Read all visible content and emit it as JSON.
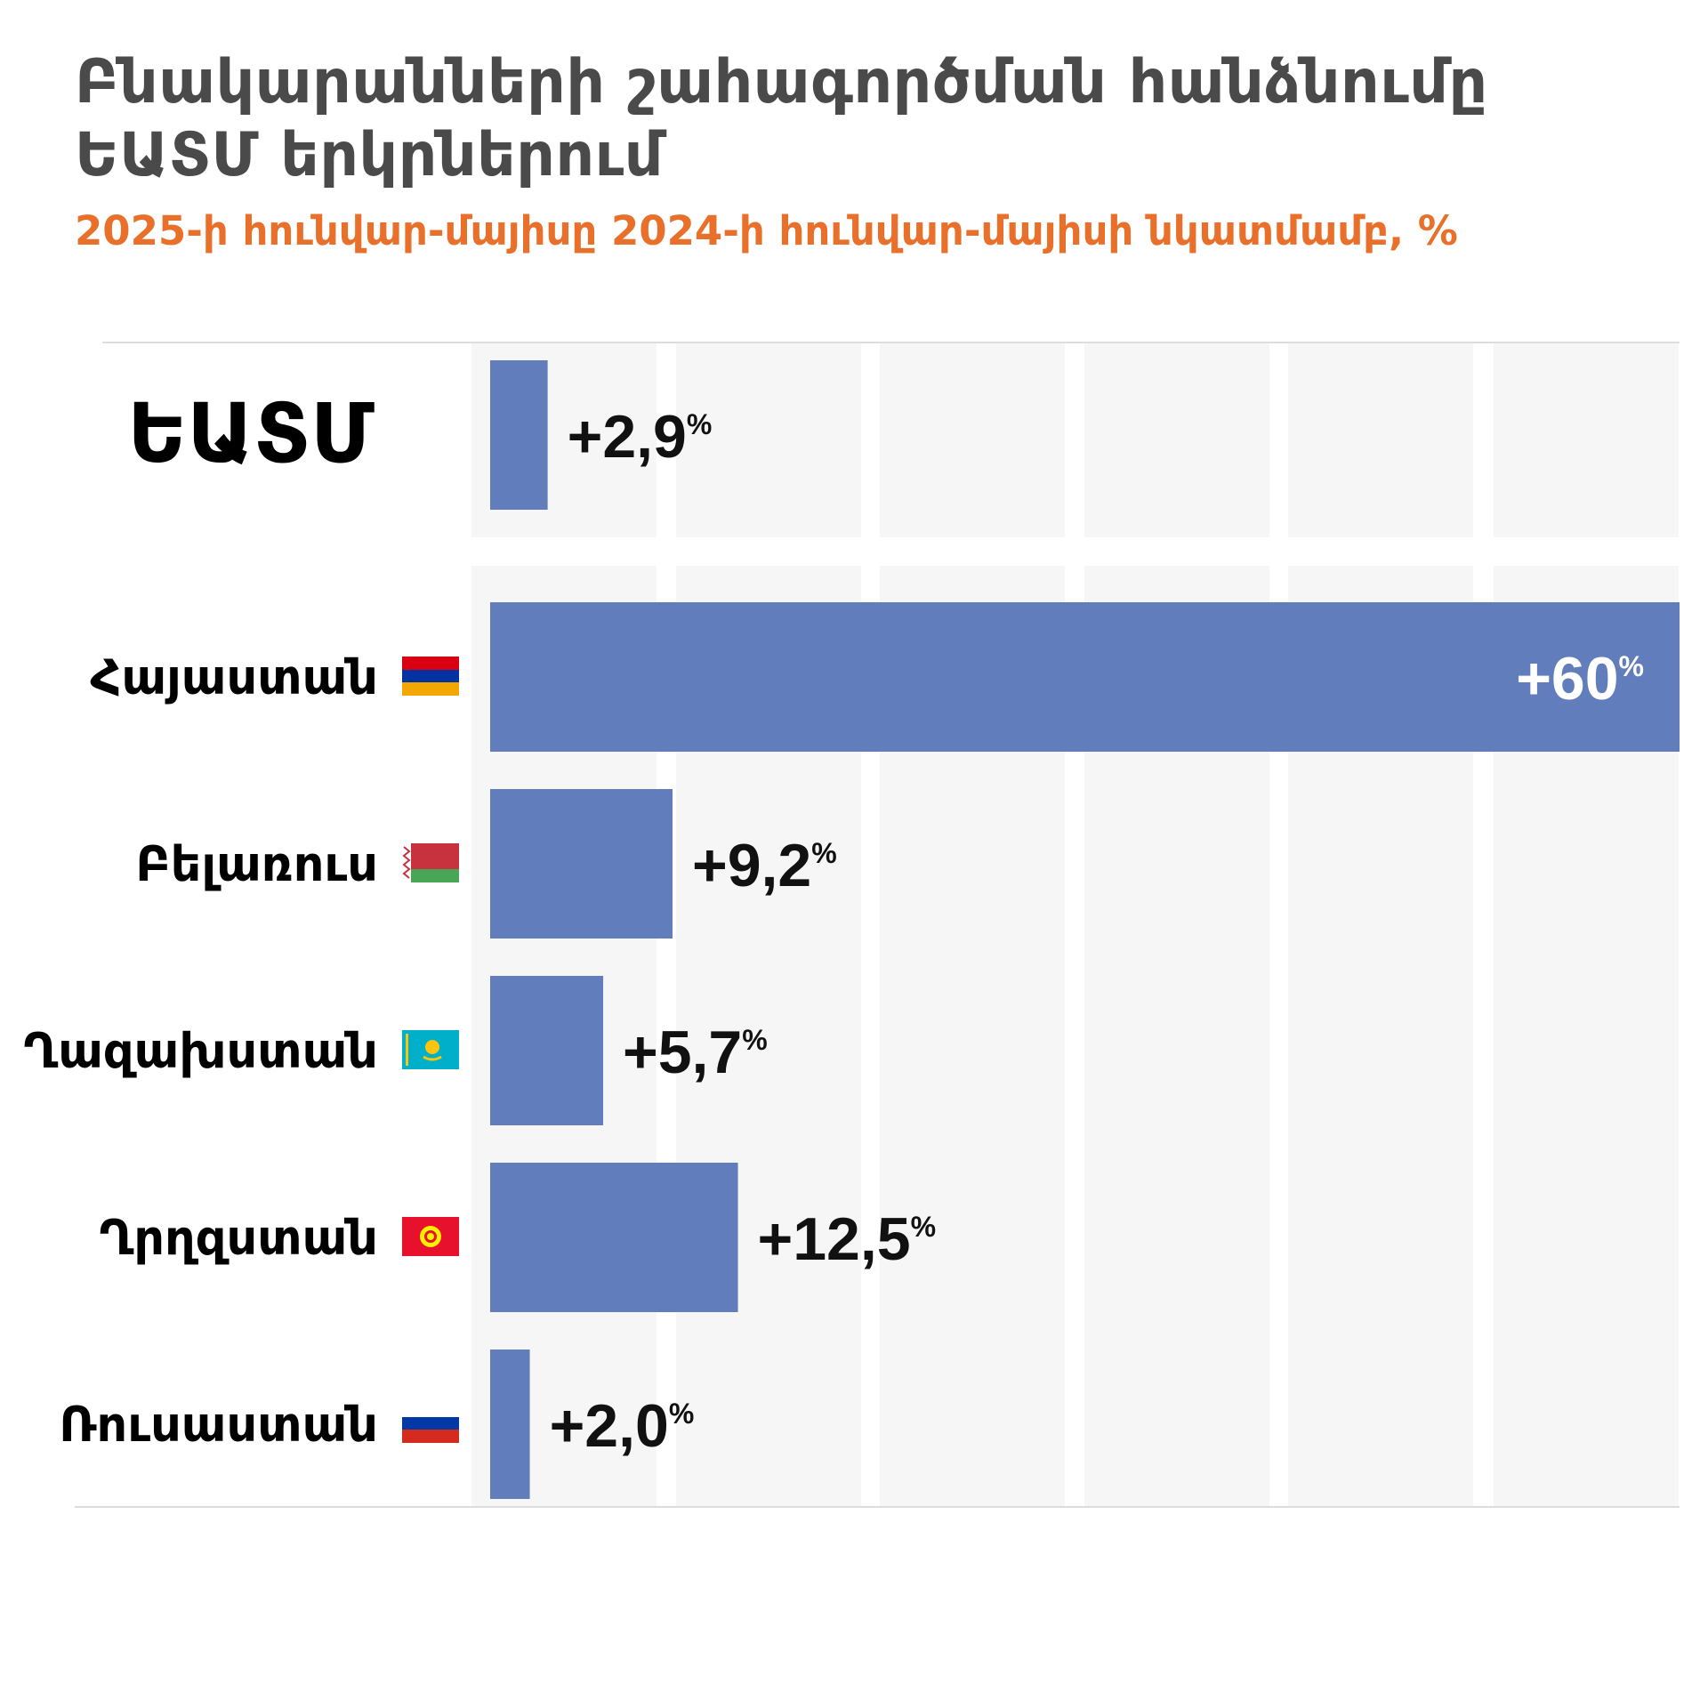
{
  "title": "Բնակարանների շահագործման հանձնումը ԵԱՏՄ երկրներում",
  "subtitle": "2025-ի հունվար-մայիսը 2024-ի հունվար-մայիսի նկատմամբ, %",
  "chart_data": {
    "type": "bar",
    "orientation": "horizontal",
    "title": "Բնակարանների շահագործման հանձնումը ԵԱՏՄ երկրներում",
    "subtitle": "2025-ի հունվար-մայիսը 2024-ի հունվար-մայիսի նկատմամբ, %",
    "unit": "%",
    "xlim": [
      0,
      60
    ],
    "grid": "vertical-bands",
    "groups": [
      {
        "name": "eaeu",
        "bars": [
          {
            "category": "ԵԱՏՄ",
            "value": 2.9,
            "label": "+2,9",
            "flag": ""
          }
        ]
      },
      {
        "name": "countries",
        "bars": [
          {
            "category": "Հայաստան",
            "value": 60,
            "label": "+60",
            "flag": "armenia-flag"
          },
          {
            "category": "Բելառուս",
            "value": 9.2,
            "label": "+9,2",
            "flag": "belarus-flag"
          },
          {
            "category": "Ղազախստան",
            "value": 5.7,
            "label": "+5,7",
            "flag": "kazakhstan-flag"
          },
          {
            "category": "Ղրղզստան",
            "value": 12.5,
            "label": "+12,5",
            "flag": "kyrgyzstan-flag"
          },
          {
            "category": "Ռուսաստան",
            "value": 2.0,
            "label": "+2,0",
            "flag": "russia-flag"
          }
        ]
      }
    ],
    "percent_sign": "%"
  },
  "colors": {
    "bar": "#627dbb",
    "band": "#f6f6f6",
    "title": "#4a4a4a",
    "subtitle": "#e8702a",
    "label": "#111111",
    "rule": "#dddddd"
  }
}
